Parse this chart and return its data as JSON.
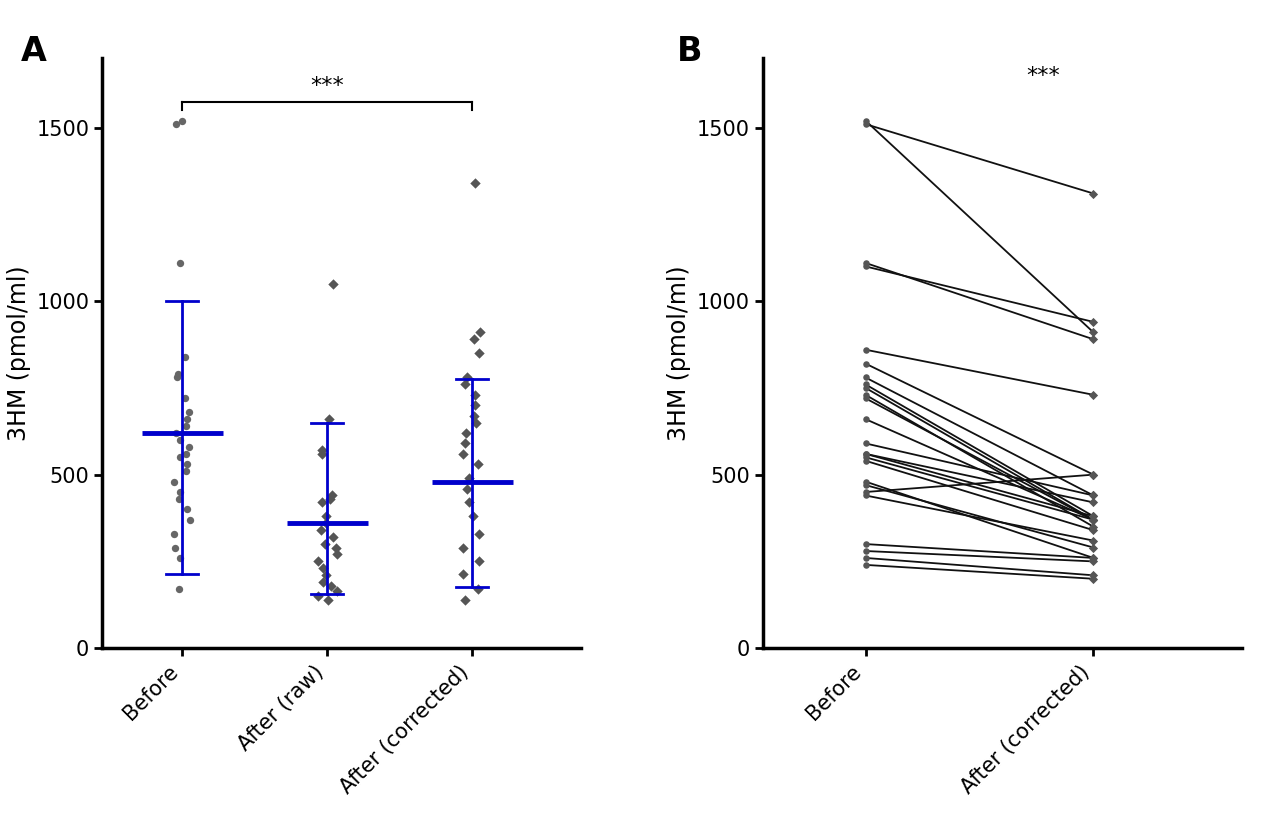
{
  "panel_A": {
    "label": "A",
    "ylabel": "3HM (pmol/ml)",
    "categories": [
      "Before",
      "After (raw)",
      "After (corrected)"
    ],
    "before_points": [
      1510,
      1520,
      1110,
      840,
      790,
      780,
      720,
      680,
      660,
      640,
      620,
      600,
      580,
      560,
      550,
      530,
      510,
      480,
      450,
      430,
      400,
      370,
      330,
      290,
      260,
      170
    ],
    "after_raw_points": [
      1050,
      660,
      570,
      560,
      440,
      430,
      420,
      380,
      360,
      340,
      320,
      300,
      290,
      270,
      250,
      230,
      210,
      190,
      180,
      165,
      150,
      140
    ],
    "after_corr_points": [
      1340,
      910,
      890,
      850,
      780,
      760,
      730,
      700,
      670,
      650,
      620,
      590,
      560,
      530,
      490,
      460,
      420,
      380,
      330,
      290,
      250,
      215,
      170,
      140
    ],
    "before_mean": 620,
    "before_sd_upper": 1000,
    "before_sd_lower": 215,
    "after_raw_mean": 360,
    "after_raw_sd_upper": 650,
    "after_raw_sd_lower": 155,
    "after_corr_mean": 480,
    "after_corr_sd_upper": 775,
    "after_corr_sd_lower": 175,
    "sig_text": "***",
    "color": "#0000cc",
    "dot_color_before": "#666666",
    "dot_color_after": "#555555",
    "ylim": [
      0,
      1700
    ],
    "yticks": [
      0,
      500,
      1000,
      1500
    ]
  },
  "panel_B": {
    "label": "B",
    "ylabel": "3HM (pmol/ml)",
    "categories": [
      "Before",
      "After (corrected)"
    ],
    "paired_before": [
      1520,
      1110,
      860,
      820,
      780,
      760,
      750,
      730,
      720,
      660,
      590,
      560,
      560,
      550,
      540,
      480,
      470,
      450,
      440,
      300,
      280,
      260,
      240
    ],
    "paired_after": [
      910,
      890,
      730,
      500,
      440,
      380,
      370,
      350,
      370,
      370,
      440,
      420,
      380,
      370,
      340,
      260,
      290,
      500,
      310,
      260,
      250,
      210,
      200
    ],
    "extra_before": [
      1510,
      1100
    ],
    "extra_after": [
      1310,
      940
    ],
    "sig_text": "***",
    "dot_color": "#555555",
    "line_color": "#111111",
    "ylim": [
      0,
      1700
    ],
    "yticks": [
      0,
      500,
      1000,
      1500
    ]
  },
  "background_color": "#ffffff",
  "label_fontsize": 24,
  "tick_fontsize": 15,
  "axis_label_fontsize": 17
}
